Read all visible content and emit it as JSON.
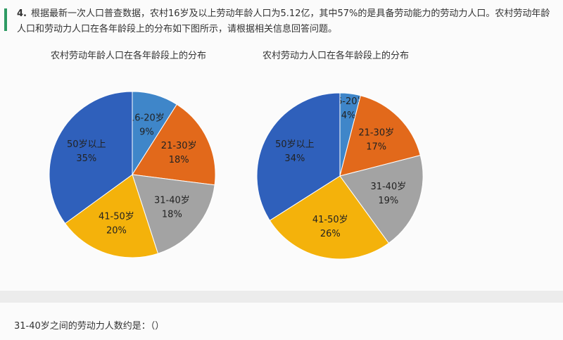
{
  "question": {
    "number": "4.",
    "text": "根据最新一次人口普查数据，农村16岁及以上劳动年龄人口为5.12亿，其中57%的是具备劳动能力的劳动力人口。农村劳动年龄人口和劳动力人口在各年龄段上的分布如下图所示，请根据相关信息回答问题。",
    "sub_question": "31-40岁之间的劳动力人数约是：（）"
  },
  "chart_data": [
    {
      "type": "pie",
      "title": "农村劳动年龄人口在各年龄段上的分布",
      "categories": [
        "16-20岁",
        "21-30岁",
        "31-40岁",
        "41-50岁",
        "50岁以上"
      ],
      "values": [
        9,
        18,
        18,
        20,
        35
      ],
      "labels": [
        "9%",
        "18%",
        "18%",
        "20%",
        "35%"
      ],
      "colors": [
        "#3f86c9",
        "#e2691b",
        "#a3a3a3",
        "#f4b20b",
        "#2f60bb"
      ]
    },
    {
      "type": "pie",
      "title": "农村劳动力人口在各年龄段上的分布",
      "categories": [
        "16-20岁",
        "21-30岁",
        "31-40岁",
        "41-50岁",
        "50岁以上"
      ],
      "values": [
        4,
        17,
        19,
        26,
        34
      ],
      "labels": [
        "4%",
        "17%",
        "19%",
        "26%",
        "34%"
      ],
      "colors": [
        "#3f86c9",
        "#e2691b",
        "#a3a3a3",
        "#f4b20b",
        "#2f60bb"
      ]
    }
  ]
}
